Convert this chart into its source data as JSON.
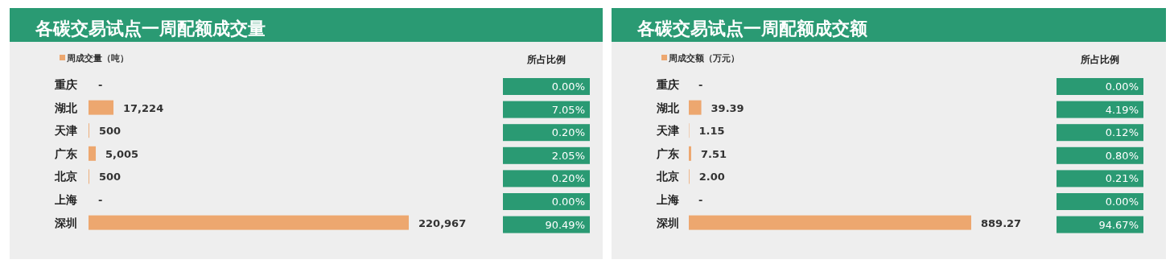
{
  "chart_data": [
    {
      "type": "bar",
      "orientation": "horizontal",
      "title": "各碳交易试点一周配额成交量",
      "legend": "top left",
      "categories": [
        "重庆",
        "湖北",
        "天津",
        "广东",
        "北京",
        "上海",
        "深圳"
      ],
      "series": [
        {
          "name": "周成交量（吨）",
          "color": "#eda76f",
          "values": [
            0,
            17224,
            500,
            5005,
            500,
            0,
            220967
          ],
          "value_labels": [
            "-",
            "17,224",
            "500",
            "5,005",
            "500",
            "-",
            "220,967"
          ]
        }
      ]
    },
    {
      "type": "other",
      "title": "所占比例",
      "annotations": [
        "0.00%",
        "7.05%",
        "0.20%",
        "2.05%",
        "0.20%",
        "0.00%",
        "90.49%"
      ],
      "colors": [
        "#2a9a73",
        "#2a9a73",
        "#2a9a73",
        "#2a9a73",
        "#2a9a73",
        "#2a9a73",
        "#2a9a73"
      ]
    },
    {
      "type": "bar",
      "orientation": "horizontal",
      "title": "各碳交易试点一周配额成交额",
      "legend": "top left",
      "categories": [
        "重庆",
        "湖北",
        "天津",
        "广东",
        "北京",
        "上海",
        "深圳"
      ],
      "series": [
        {
          "name": "周成交额（万元）",
          "color": "#eda76f",
          "values": [
            0,
            39.39,
            1.15,
            7.51,
            2.0,
            0,
            889.27
          ],
          "value_labels": [
            "-",
            "39.39",
            "1.15",
            "7.51",
            "2.00",
            "-",
            "889.27"
          ]
        }
      ]
    },
    {
      "type": "other",
      "title": "所占比例",
      "annotations": [
        "0.00%",
        "4.19%",
        "0.12%",
        "0.80%",
        "0.21%",
        "0.00%",
        "94.67%"
      ],
      "colors": [
        "#2a9a73",
        "#2a9a73",
        "#2a9a73",
        "#2a9a73",
        "#2a9a73",
        "#2a9a73",
        "#2a9a73"
      ]
    }
  ]
}
